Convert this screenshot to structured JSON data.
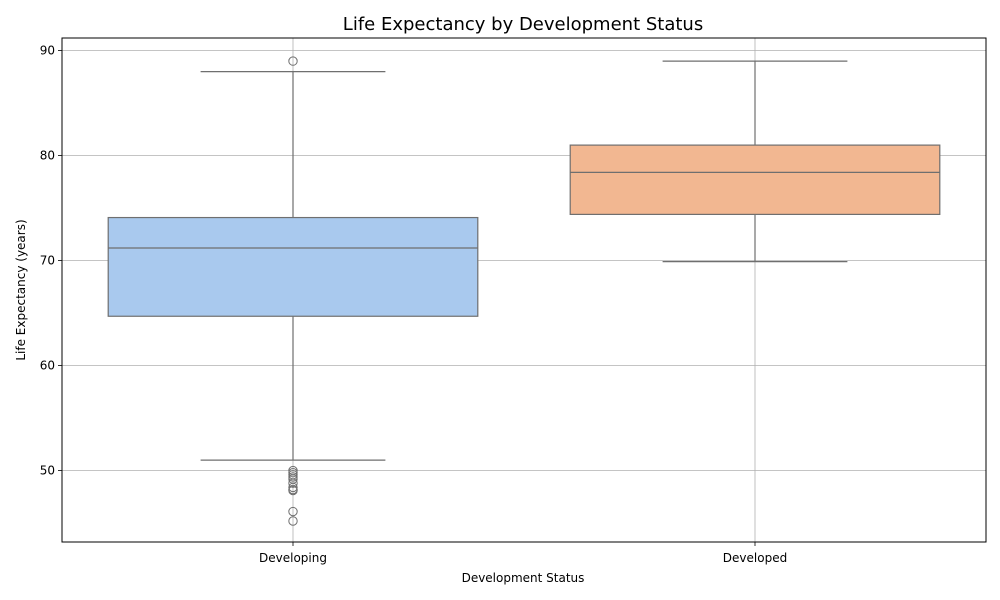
{
  "chart_data": {
    "type": "box",
    "title": "Life Expectancy by Development Status",
    "xlabel": "Development Status",
    "ylabel": "Life Expectancy (years)",
    "ylim": [
      43.2,
      91.2
    ],
    "yticks": [
      50,
      60,
      70,
      80,
      90
    ],
    "grid": true,
    "categories": [
      "Developing",
      "Developed"
    ],
    "boxes": [
      {
        "category": "Developing",
        "color": "#a9c9ee",
        "whisker_low": 51.0,
        "q1": 64.7,
        "median": 71.2,
        "q3": 74.1,
        "whisker_high": 88.0,
        "outliers": [
          89.0,
          50.0,
          49.8,
          49.6,
          49.4,
          49.2,
          48.8,
          48.4,
          48.2,
          48.1,
          46.1,
          45.2
        ]
      },
      {
        "category": "Developed",
        "color": "#f2b791",
        "whisker_low": 69.9,
        "q1": 74.4,
        "median": 78.4,
        "q3": 81.0,
        "whisker_high": 89.0,
        "outliers": []
      }
    ]
  }
}
